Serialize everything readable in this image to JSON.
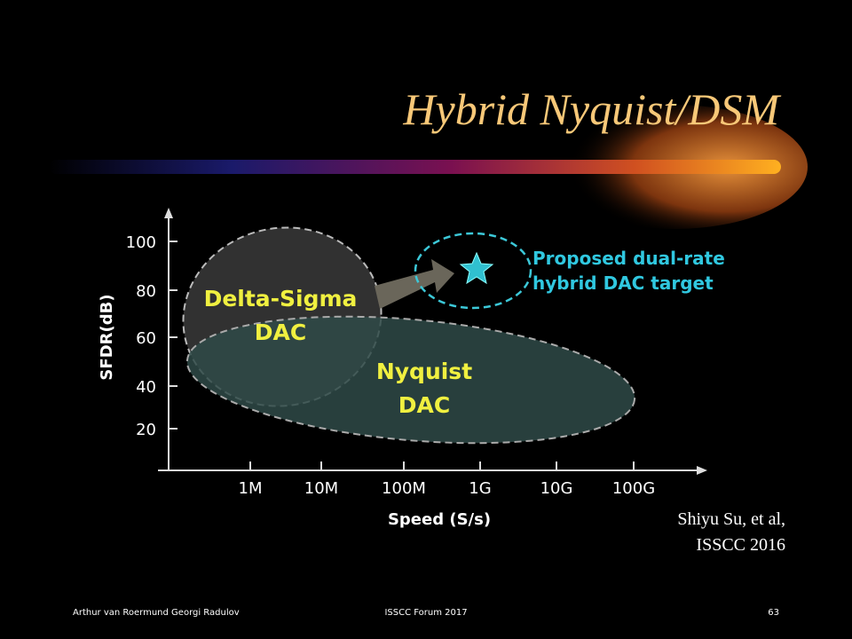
{
  "header": {
    "title": "Hybrid Nyquist/DSM"
  },
  "figure": {
    "y_axis_label": "SFDR(dB)",
    "x_axis_label": "Speed (S/s)",
    "y_ticks": [
      "100",
      "80",
      "60",
      "40",
      "20"
    ],
    "x_ticks": [
      "1M",
      "10M",
      "100M",
      "1G",
      "10G",
      "100G"
    ],
    "regions": {
      "delta_sigma": [
        "Delta-Sigma",
        "DAC"
      ],
      "nyquist": [
        "Nyquist",
        "DAC"
      ],
      "target": [
        "Proposed dual-rate",
        "hybrid DAC target"
      ]
    }
  },
  "citation": [
    "Shiyu Su, et al,",
    "ISSCC 2016"
  ],
  "footer": {
    "authors": "Arthur van Roermund Georgi Radulov",
    "event": "ISSCC Forum 2017",
    "page": "63"
  }
}
